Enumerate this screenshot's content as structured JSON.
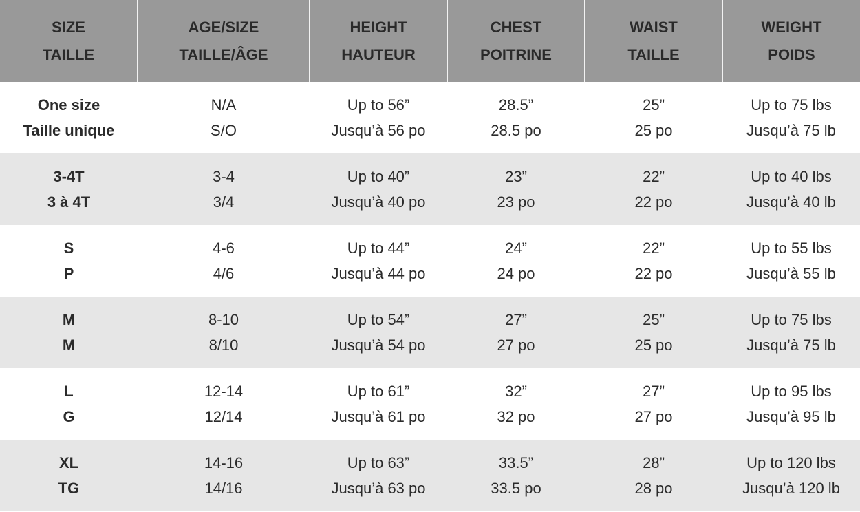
{
  "headers": [
    [
      "SIZE",
      "TAILLE"
    ],
    [
      "AGE/SIZE",
      "TAILLE/ÂGE"
    ],
    [
      "HEIGHT",
      "HAUTEUR"
    ],
    [
      "CHEST",
      "POITRINE"
    ],
    [
      "WAIST",
      "TAILLE"
    ],
    [
      "WEIGHT",
      "POIDS"
    ]
  ],
  "rows": [
    [
      [
        "One size",
        "Taille unique"
      ],
      [
        "N/A",
        "S/O"
      ],
      [
        "Up to 56”",
        "Jusqu’à 56 po"
      ],
      [
        "28.5”",
        "28.5 po"
      ],
      [
        "25”",
        "25 po"
      ],
      [
        "Up to 75 lbs",
        "Jusqu’à 75 lb"
      ]
    ],
    [
      [
        "3-4T",
        "3 à 4T"
      ],
      [
        "3-4",
        "3/4"
      ],
      [
        "Up to 40”",
        "Jusqu’à 40 po"
      ],
      [
        "23”",
        "23 po"
      ],
      [
        "22”",
        "22 po"
      ],
      [
        "Up to 40 lbs",
        "Jusqu’à 40 lb"
      ]
    ],
    [
      [
        "S",
        "P"
      ],
      [
        "4-6",
        "4/6"
      ],
      [
        "Up to 44”",
        "Jusqu’à 44 po"
      ],
      [
        "24”",
        "24 po"
      ],
      [
        "22”",
        "22 po"
      ],
      [
        "Up to 55 lbs",
        "Jusqu’à 55 lb"
      ]
    ],
    [
      [
        "M",
        "M"
      ],
      [
        "8-10",
        "8/10"
      ],
      [
        "Up to 54”",
        "Jusqu’à 54 po"
      ],
      [
        "27”",
        "27 po"
      ],
      [
        "25”",
        "25 po"
      ],
      [
        "Up to 75 lbs",
        "Jusqu’à 75 lb"
      ]
    ],
    [
      [
        "L",
        "G"
      ],
      [
        "12-14",
        "12/14"
      ],
      [
        "Up to 61”",
        "Jusqu’à 61 po"
      ],
      [
        "32”",
        "32 po"
      ],
      [
        "27”",
        "27 po"
      ],
      [
        "Up to 95 lbs",
        "Jusqu’à 95 lb"
      ]
    ],
    [
      [
        "XL",
        "TG"
      ],
      [
        "14-16",
        "14/16"
      ],
      [
        "Up to 63”",
        "Jusqu’à 63 po"
      ],
      [
        "33.5”",
        "33.5 po"
      ],
      [
        "28”",
        "28 po"
      ],
      [
        "Up to 120 lbs",
        "Jusqu’à 120 lb"
      ]
    ]
  ]
}
